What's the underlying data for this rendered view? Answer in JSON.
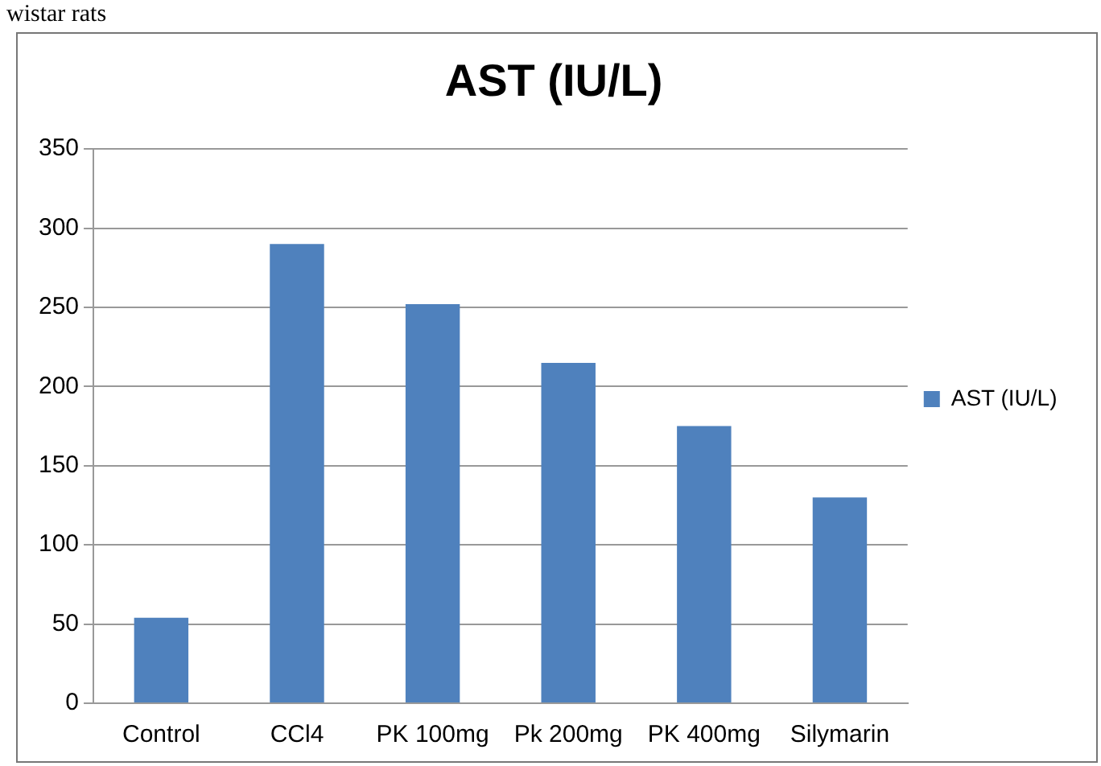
{
  "chart_data": {
    "type": "bar",
    "title": "AST (IU/L)",
    "annotations": [
      "wistar rats"
    ],
    "categories": [
      "Control",
      "CCl4",
      "PK 100mg",
      "Pk 200mg",
      "PK 400mg",
      "Silymarin"
    ],
    "series": [
      {
        "name": "AST (IU/L)",
        "color": "#4f81bd",
        "values": [
          54,
          290,
          252,
          215,
          175,
          130
        ]
      }
    ],
    "ylim": [
      0,
      350
    ],
    "yticks": [
      0,
      50,
      100,
      150,
      200,
      250,
      300,
      350
    ],
    "grid": "y",
    "legend": "right"
  }
}
